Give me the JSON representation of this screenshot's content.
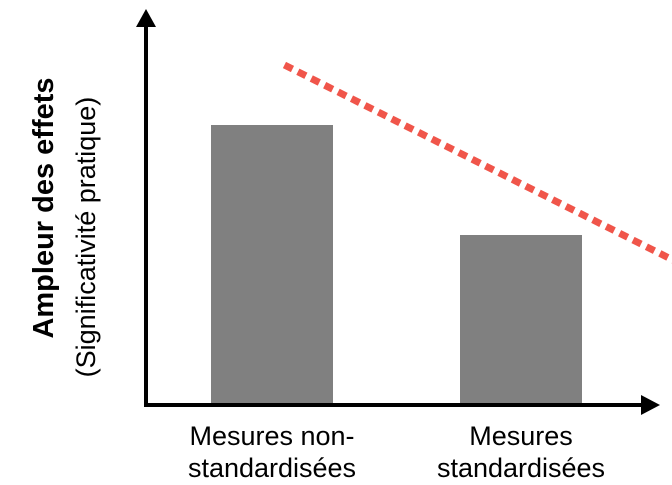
{
  "chart_data": {
    "type": "bar",
    "categories": [
      "Mesures non-\nstandardisées",
      "Mesures\nstandardisées"
    ],
    "values": [
      280,
      170
    ],
    "ylim": [
      0,
      390
    ],
    "ylabel": "Ampleur des effets",
    "ylabel_sub": "(Significativité pratique)",
    "xlabel": "",
    "grid": false,
    "bar_color": "#808080",
    "trend_arrow": {
      "style": "dotted",
      "color": "#f0554a",
      "from": {
        "x": 0.05,
        "y": 340
      },
      "to": {
        "x": 1.85,
        "y": 115
      }
    }
  }
}
